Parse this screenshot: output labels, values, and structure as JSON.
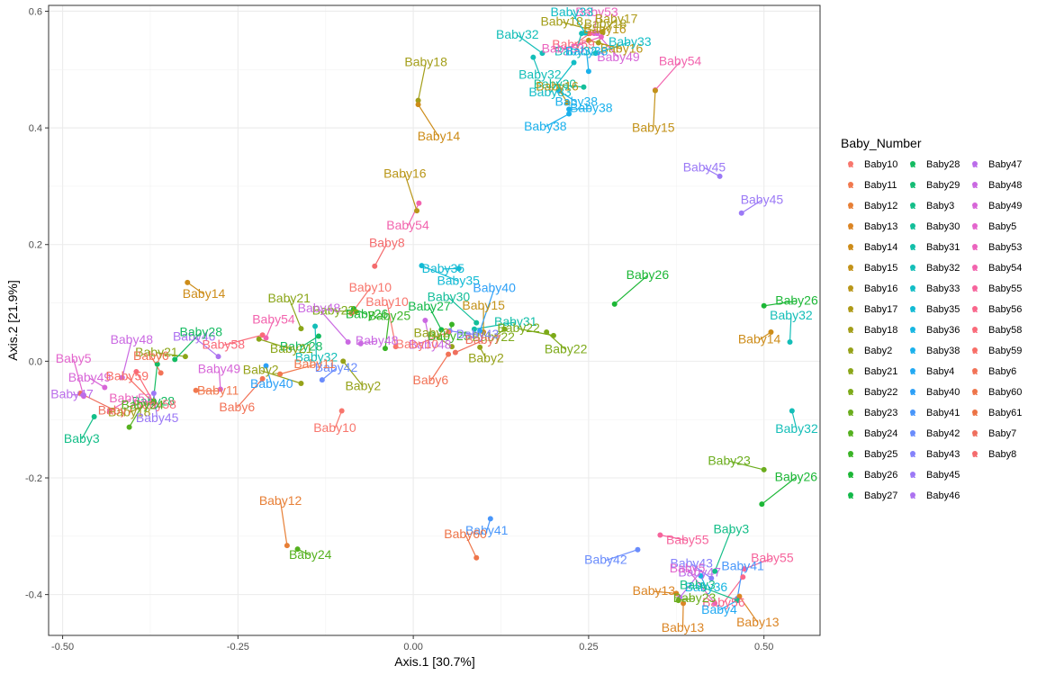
{
  "chart_data": {
    "type": "scatter",
    "xlabel": "Axis.1   [30.7%]",
    "ylabel": "Axis.2   [21.9%]",
    "xlim": [
      -0.52,
      0.58
    ],
    "ylim": [
      -0.47,
      0.61
    ],
    "xticks": [
      -0.5,
      -0.25,
      0.0,
      0.25,
      0.5
    ],
    "xtick_labels": [
      "-0.50",
      "-0.25",
      "0.00",
      "0.25",
      "0.50"
    ],
    "yticks": [
      -0.4,
      -0.2,
      0.0,
      0.2,
      0.4,
      0.6
    ],
    "ytick_labels": [
      "-0.4",
      "-0.2",
      "0.0",
      "0.2",
      "0.4",
      "0.6"
    ],
    "grid": true,
    "legend": {
      "title": "Baby_Number",
      "position": "right",
      "entries": [
        {
          "name": "Baby10",
          "color": "#F8766D"
        },
        {
          "name": "Baby11",
          "color": "#F1794F"
        },
        {
          "name": "Baby12",
          "color": "#E77F36"
        },
        {
          "name": "Baby13",
          "color": "#DB8524"
        },
        {
          "name": "Baby14",
          "color": "#CD8C19"
        },
        {
          "name": "Baby15",
          "color": "#C39219"
        },
        {
          "name": "Baby16",
          "color": "#B99618"
        },
        {
          "name": "Baby17",
          "color": "#AE9A17"
        },
        {
          "name": "Baby18",
          "color": "#A39E19"
        },
        {
          "name": "Baby2",
          "color": "#96A219"
        },
        {
          "name": "Baby21",
          "color": "#8BA619"
        },
        {
          "name": "Baby22",
          "color": "#7DAA19"
        },
        {
          "name": "Baby23",
          "color": "#6BAD1D"
        },
        {
          "name": "Baby24",
          "color": "#55B11F"
        },
        {
          "name": "Baby25",
          "color": "#3AB426"
        },
        {
          "name": "Baby26",
          "color": "#1CB736"
        },
        {
          "name": "Baby27",
          "color": "#13B949"
        },
        {
          "name": "Baby28",
          "color": "#14BB61"
        },
        {
          "name": "Baby29",
          "color": "#15BC75"
        },
        {
          "name": "Baby3",
          "color": "#14BE88"
        },
        {
          "name": "Baby30",
          "color": "#13BE99"
        },
        {
          "name": "Baby31",
          "color": "#12BFA9"
        },
        {
          "name": "Baby32",
          "color": "#14BEB8"
        },
        {
          "name": "Baby33",
          "color": "#12BDC6"
        },
        {
          "name": "Baby35",
          "color": "#12BAD4"
        },
        {
          "name": "Baby36",
          "color": "#17B6E2"
        },
        {
          "name": "Baby38",
          "color": "#1BB1EC"
        },
        {
          "name": "Baby4",
          "color": "#22A9F3"
        },
        {
          "name": "Baby40",
          "color": "#2DA0F7"
        },
        {
          "name": "Baby41",
          "color": "#4896FA"
        },
        {
          "name": "Baby42",
          "color": "#6A8CFC"
        },
        {
          "name": "Baby43",
          "color": "#8582FB"
        },
        {
          "name": "Baby45",
          "color": "#9B79F6"
        },
        {
          "name": "Baby46",
          "color": "#AC72F0"
        },
        {
          "name": "Baby47",
          "color": "#BB6DEA"
        },
        {
          "name": "Baby48",
          "color": "#CA69E2"
        },
        {
          "name": "Baby49",
          "color": "#D766D8"
        },
        {
          "name": "Baby5",
          "color": "#E365CD"
        },
        {
          "name": "Baby53",
          "color": "#EB64BE"
        },
        {
          "name": "Baby54",
          "color": "#F264AE"
        },
        {
          "name": "Baby55",
          "color": "#F6649C"
        },
        {
          "name": "Baby56",
          "color": "#F9668B"
        },
        {
          "name": "Baby58",
          "color": "#FA6A79"
        },
        {
          "name": "Baby59",
          "color": "#F86E67"
        },
        {
          "name": "Baby6",
          "color": "#F27256"
        },
        {
          "name": "Baby60",
          "color": "#EE754A"
        },
        {
          "name": "Baby61",
          "color": "#EC7345"
        },
        {
          "name": "Baby7",
          "color": "#EF6F5E"
        },
        {
          "name": "Baby8",
          "color": "#F46B6D"
        }
      ]
    },
    "points": [
      {
        "label": "Baby16",
        "x": 0.25,
        "y": 0.562,
        "color": "#B99618"
      },
      {
        "label": "Baby59",
        "x": 0.252,
        "y": 0.562,
        "color": "#FA6A79"
      },
      {
        "label": "Baby53",
        "x": 0.258,
        "y": 0.562,
        "color": "#EB64BE"
      },
      {
        "label": "Baby49",
        "x": 0.262,
        "y": 0.562,
        "color": "#D766D8"
      },
      {
        "label": "Baby18",
        "x": 0.27,
        "y": 0.563,
        "color": "#A39E19"
      },
      {
        "label": "Baby17",
        "x": 0.27,
        "y": 0.565,
        "color": "#AE9A17"
      },
      {
        "label": "Baby32",
        "x": 0.24,
        "y": 0.562,
        "color": "#14BEB8"
      },
      {
        "label": "Baby33",
        "x": 0.245,
        "y": 0.563,
        "color": "#12BDC6"
      },
      {
        "label": "Baby16",
        "x": 0.25,
        "y": 0.55,
        "color": "#B99618"
      },
      {
        "label": "Baby53",
        "x": 0.268,
        "y": 0.556,
        "color": "#EB64BE"
      },
      {
        "label": "Baby18",
        "x": 0.264,
        "y": 0.546,
        "color": "#A39E19"
      },
      {
        "label": "Baby32",
        "x": 0.171,
        "y": 0.521,
        "color": "#14BEB8"
      },
      {
        "label": "Baby32",
        "x": 0.184,
        "y": 0.528,
        "color": "#14BEB8"
      },
      {
        "label": "Baby33",
        "x": 0.26,
        "y": 0.528,
        "color": "#12BDC6"
      },
      {
        "label": "Baby33",
        "x": 0.229,
        "y": 0.512,
        "color": "#12BDC6"
      },
      {
        "label": "Baby38",
        "x": 0.25,
        "y": 0.497,
        "color": "#1BB1EC"
      },
      {
        "label": "Baby38",
        "x": 0.208,
        "y": 0.463,
        "color": "#1BB1EC"
      },
      {
        "label": "Baby30",
        "x": 0.243,
        "y": 0.47,
        "color": "#13BE99"
      },
      {
        "label": "Baby54",
        "x": 0.345,
        "y": 0.465,
        "color": "#F264AE"
      },
      {
        "label": "Baby15",
        "x": 0.345,
        "y": 0.464,
        "color": "#C39219"
      },
      {
        "label": "Baby16",
        "x": 0.22,
        "y": 0.443,
        "color": "#B99618"
      },
      {
        "label": "Baby38",
        "x": 0.222,
        "y": 0.432,
        "color": "#1BB1EC"
      },
      {
        "label": "Baby38",
        "x": 0.222,
        "y": 0.424,
        "color": "#1BB1EC"
      },
      {
        "label": "Baby18",
        "x": 0.007,
        "y": 0.447,
        "color": "#A39E19"
      },
      {
        "label": "Baby14",
        "x": 0.007,
        "y": 0.44,
        "color": "#CD8C19"
      },
      {
        "label": "Baby45",
        "x": 0.437,
        "y": 0.317,
        "color": "#9B79F6"
      },
      {
        "label": "Baby45",
        "x": 0.468,
        "y": 0.254,
        "color": "#9B79F6"
      },
      {
        "label": "Baby54",
        "x": 0.008,
        "y": 0.271,
        "color": "#F264AE"
      },
      {
        "label": "Baby16",
        "x": 0.005,
        "y": 0.258,
        "color": "#B99618"
      },
      {
        "label": "Baby35",
        "x": 0.012,
        "y": 0.164,
        "color": "#12BAD4"
      },
      {
        "label": "Baby35",
        "x": 0.065,
        "y": 0.159,
        "color": "#12BAD4"
      },
      {
        "label": "Baby8",
        "x": -0.055,
        "y": 0.163,
        "color": "#F46B6D"
      },
      {
        "label": "Baby48",
        "x": 0.017,
        "y": 0.07,
        "color": "#CA69E2"
      },
      {
        "label": "Baby30",
        "x": 0.09,
        "y": 0.066,
        "color": "#13BE99"
      },
      {
        "label": "Baby31",
        "x": 0.087,
        "y": 0.055,
        "color": "#12BFA9"
      },
      {
        "label": "Baby22",
        "x": 0.13,
        "y": 0.055,
        "color": "#7DAA19"
      },
      {
        "label": "Baby15",
        "x": 0.1,
        "y": 0.05,
        "color": "#C39219"
      },
      {
        "label": "Baby22",
        "x": 0.19,
        "y": 0.05,
        "color": "#7DAA19"
      },
      {
        "label": "Baby22",
        "x": 0.2,
        "y": 0.044,
        "color": "#7DAA19"
      },
      {
        "label": "Baby26",
        "x": 0.287,
        "y": 0.098,
        "color": "#1CB736"
      },
      {
        "label": "Baby25",
        "x": 0.055,
        "y": 0.063,
        "color": "#3AB426"
      },
      {
        "label": "Baby27",
        "x": 0.04,
        "y": 0.054,
        "color": "#13B949"
      },
      {
        "label": "Baby43",
        "x": 0.052,
        "y": 0.052,
        "color": "#8582FB"
      },
      {
        "label": "Baby10",
        "x": 0.05,
        "y": 0.05,
        "color": "#F8766D"
      },
      {
        "label": "Baby40",
        "x": 0.095,
        "y": 0.052,
        "color": "#2DA0F7"
      },
      {
        "label": "Baby2",
        "x": 0.095,
        "y": 0.024,
        "color": "#96A219"
      },
      {
        "label": "Baby2",
        "x": 0.055,
        "y": 0.025,
        "color": "#96A219"
      },
      {
        "label": "Baby7",
        "x": 0.06,
        "y": 0.015,
        "color": "#EF6F5E"
      },
      {
        "label": "Baby6",
        "x": 0.05,
        "y": 0.012,
        "color": "#F27256"
      },
      {
        "label": "Baby10",
        "x": -0.025,
        "y": 0.025,
        "color": "#F8766D"
      },
      {
        "label": "Baby26",
        "x": -0.085,
        "y": 0.09,
        "color": "#1CB736"
      },
      {
        "label": "Baby22",
        "x": -0.082,
        "y": 0.085,
        "color": "#7DAA19"
      },
      {
        "label": "Baby10",
        "x": -0.088,
        "y": 0.082,
        "color": "#F8766D"
      },
      {
        "label": "Baby32",
        "x": -0.14,
        "y": 0.06,
        "color": "#14BEB8"
      },
      {
        "label": "Baby48",
        "x": -0.093,
        "y": 0.033,
        "color": "#CA69E2"
      },
      {
        "label": "Baby48",
        "x": -0.075,
        "y": 0.03,
        "color": "#CA69E2"
      },
      {
        "label": "Baby28",
        "x": -0.135,
        "y": 0.043,
        "color": "#14BB61"
      },
      {
        "label": "Baby25",
        "x": -0.04,
        "y": 0.022,
        "color": "#3AB426"
      },
      {
        "label": "Baby2",
        "x": -0.1,
        "y": 0.0,
        "color": "#96A219"
      },
      {
        "label": "Baby2",
        "x": -0.16,
        "y": -0.038,
        "color": "#96A219"
      },
      {
        "label": "Baby42",
        "x": -0.13,
        "y": -0.032,
        "color": "#6A8CFC"
      },
      {
        "label": "Baby10",
        "x": -0.102,
        "y": -0.085,
        "color": "#F8766D"
      },
      {
        "label": "Baby21",
        "x": -0.16,
        "y": 0.056,
        "color": "#8BA619"
      },
      {
        "label": "Baby21",
        "x": -0.22,
        "y": 0.038,
        "color": "#8BA619"
      },
      {
        "label": "Baby58",
        "x": -0.215,
        "y": 0.045,
        "color": "#FA6A79"
      },
      {
        "label": "Baby54",
        "x": -0.21,
        "y": 0.04,
        "color": "#F264AE"
      },
      {
        "label": "Baby40",
        "x": -0.21,
        "y": -0.008,
        "color": "#2DA0F7"
      },
      {
        "label": "Baby46",
        "x": -0.278,
        "y": 0.008,
        "color": "#AC72F0"
      },
      {
        "label": "Baby11",
        "x": -0.19,
        "y": -0.022,
        "color": "#F1794F"
      },
      {
        "label": "Baby6",
        "x": -0.215,
        "y": -0.03,
        "color": "#F27256"
      },
      {
        "label": "Baby49",
        "x": -0.275,
        "y": -0.048,
        "color": "#D766D8"
      },
      {
        "label": "Baby14",
        "x": -0.322,
        "y": 0.135,
        "color": "#CD8C19"
      },
      {
        "label": "Baby21",
        "x": -0.325,
        "y": 0.008,
        "color": "#8BA619"
      },
      {
        "label": "Baby28",
        "x": -0.34,
        "y": 0.003,
        "color": "#14BB61"
      },
      {
        "label": "Baby28",
        "x": -0.365,
        "y": -0.005,
        "color": "#14BB61"
      },
      {
        "label": "Baby6",
        "x": -0.36,
        "y": -0.02,
        "color": "#F27256"
      },
      {
        "label": "Baby11",
        "x": -0.31,
        "y": -0.05,
        "color": "#F1794F"
      },
      {
        "label": "Baby18",
        "x": -0.37,
        "y": -0.068,
        "color": "#A39E19"
      },
      {
        "label": "Baby48",
        "x": -0.415,
        "y": -0.028,
        "color": "#CA69E2"
      },
      {
        "label": "Baby58",
        "x": -0.395,
        "y": -0.018,
        "color": "#FA6A79"
      },
      {
        "label": "Baby49",
        "x": -0.44,
        "y": -0.045,
        "color": "#D766D8"
      },
      {
        "label": "Baby53",
        "x": -0.433,
        "y": -0.085,
        "color": "#EB64BE"
      },
      {
        "label": "Baby3",
        "x": -0.455,
        "y": -0.095,
        "color": "#14BE88"
      },
      {
        "label": "Baby5",
        "x": -0.47,
        "y": -0.06,
        "color": "#E365CD"
      },
      {
        "label": "Baby7",
        "x": -0.475,
        "y": -0.055,
        "color": "#EF6F5E"
      },
      {
        "label": "Baby47",
        "x": -0.47,
        "y": -0.058,
        "color": "#BB6DEA"
      },
      {
        "label": "Baby24",
        "x": -0.405,
        "y": -0.113,
        "color": "#55B11F"
      },
      {
        "label": "Baby45",
        "x": -0.37,
        "y": -0.055,
        "color": "#9B79F6"
      },
      {
        "label": "Baby59",
        "x": -0.37,
        "y": -0.072,
        "color": "#F86E67"
      },
      {
        "label": "Baby26",
        "x": 0.5,
        "y": 0.095,
        "color": "#1CB736"
      },
      {
        "label": "Baby14",
        "x": 0.51,
        "y": 0.05,
        "color": "#CD8C19"
      },
      {
        "label": "Baby32",
        "x": 0.537,
        "y": 0.033,
        "color": "#14BEB8"
      },
      {
        "label": "Baby32",
        "x": 0.54,
        "y": -0.085,
        "color": "#14BEB8"
      },
      {
        "label": "Baby23",
        "x": 0.5,
        "y": -0.186,
        "color": "#6BAD1D"
      },
      {
        "label": "Baby26",
        "x": 0.497,
        "y": -0.245,
        "color": "#1CB736"
      },
      {
        "label": "Baby41",
        "x": 0.11,
        "y": -0.27,
        "color": "#4896FA"
      },
      {
        "label": "Baby60",
        "x": 0.09,
        "y": -0.337,
        "color": "#EE754A"
      },
      {
        "label": "Baby55",
        "x": 0.352,
        "y": -0.298,
        "color": "#F6649C"
      },
      {
        "label": "Baby42",
        "x": 0.32,
        "y": -0.323,
        "color": "#6A8CFC"
      },
      {
        "label": "Baby3",
        "x": 0.43,
        "y": -0.36,
        "color": "#14BE88"
      },
      {
        "label": "Baby36",
        "x": 0.41,
        "y": -0.368,
        "color": "#17B6E2"
      },
      {
        "label": "Baby43",
        "x": 0.425,
        "y": -0.372,
        "color": "#8582FB"
      },
      {
        "label": "Baby55",
        "x": 0.472,
        "y": -0.356,
        "color": "#F6649C"
      },
      {
        "label": "Baby56",
        "x": 0.47,
        "y": -0.37,
        "color": "#F9668B"
      },
      {
        "label": "Baby12",
        "x": -0.18,
        "y": -0.316,
        "color": "#E77F36"
      },
      {
        "label": "Baby24",
        "x": -0.165,
        "y": -0.322,
        "color": "#55B11F"
      },
      {
        "label": "Baby13",
        "x": 0.375,
        "y": -0.398,
        "color": "#DB8524"
      },
      {
        "label": "Baby47",
        "x": 0.38,
        "y": -0.405,
        "color": "#BB6DEA"
      },
      {
        "label": "Baby13",
        "x": 0.385,
        "y": -0.415,
        "color": "#DB8524"
      },
      {
        "label": "Baby5",
        "x": 0.43,
        "y": -0.415,
        "color": "#E365CD"
      },
      {
        "label": "Baby23",
        "x": 0.378,
        "y": -0.41,
        "color": "#6BAD1D"
      },
      {
        "label": "Baby4",
        "x": 0.462,
        "y": -0.41,
        "color": "#22A9F3"
      },
      {
        "label": "Baby41",
        "x": 0.462,
        "y": -0.407,
        "color": "#4896FA"
      },
      {
        "label": "Baby13",
        "x": 0.465,
        "y": -0.403,
        "color": "#DB8524"
      },
      {
        "label": "Baby3",
        "x": 0.462,
        "y": -0.41,
        "color": "#14BE88"
      }
    ]
  }
}
